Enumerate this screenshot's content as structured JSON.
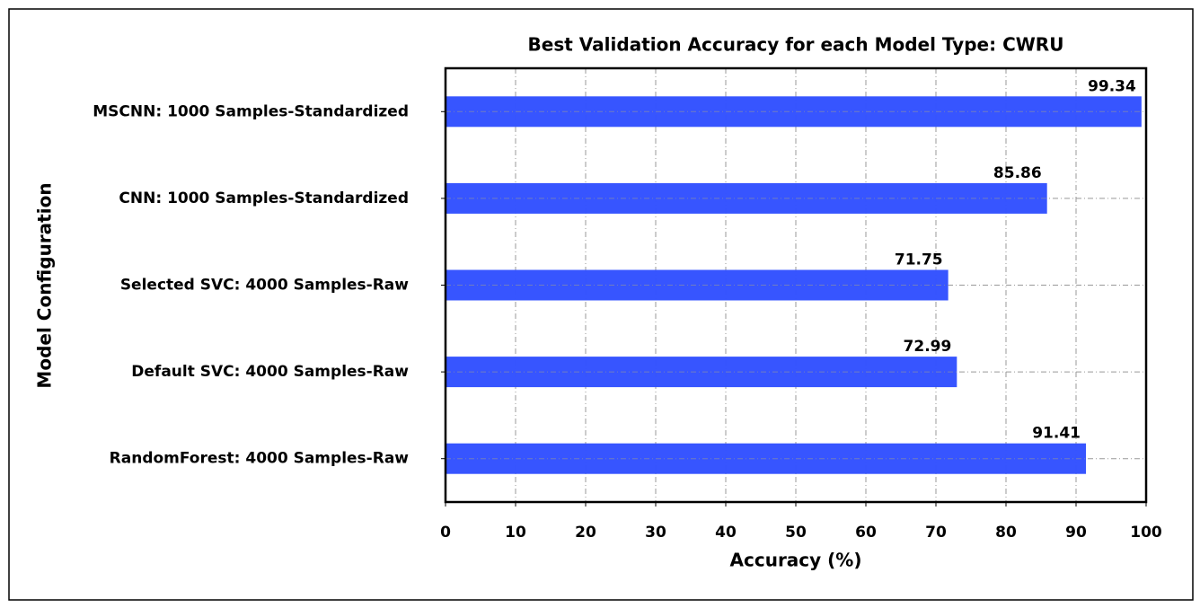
{
  "chart_data": {
    "type": "barh",
    "title": "Best Validation Accuracy for each Model Type: CWRU",
    "xlabel": "Accuracy (%)",
    "ylabel": "Model Configuration",
    "categories": [
      "MSCNN: 1000 Samples-Standardized",
      "CNN: 1000 Samples-Standardized",
      "Selected SVC: 4000 Samples-Raw",
      "Default SVC: 4000 Samples-Raw",
      "RandomForest: 4000 Samples-Raw"
    ],
    "values": [
      99.34,
      85.86,
      71.75,
      72.99,
      91.41
    ],
    "color": "#3352ff",
    "xlim": [
      0,
      100
    ],
    "xticks": [
      0,
      10,
      20,
      30,
      40,
      50,
      60,
      70,
      80,
      90,
      100
    ],
    "grid": true
  }
}
